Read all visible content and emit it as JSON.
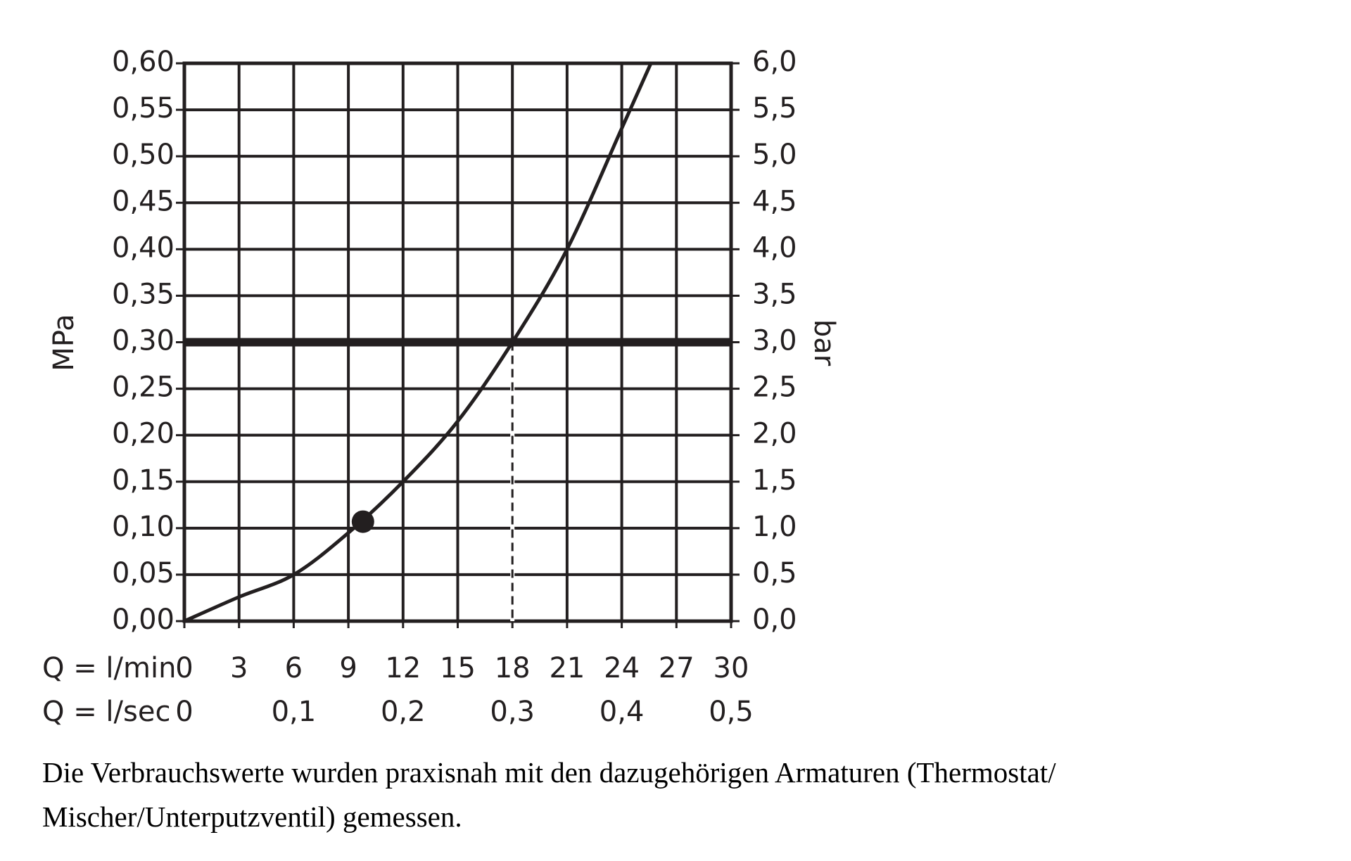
{
  "chart_data": {
    "type": "line",
    "y_label": "MPa",
    "y2_label": "bar",
    "x_label": "Q = l/min",
    "x2_label": "Q = l/sec",
    "x": [
      0,
      3,
      6,
      9,
      12,
      15,
      18,
      21,
      24,
      25.6
    ],
    "series": [
      {
        "color": "#231f20",
        "values": [
          0,
          0.026,
          0.05,
          0.095,
          0.15,
          0.215,
          0.3,
          0.4,
          0.53,
          0.6
        ]
      }
    ],
    "points": [
      {
        "x": 9.8,
        "y": 0.107,
        "color": "#231f20"
      }
    ],
    "hline": 0.3,
    "vline": 18,
    "xlim": [
      0,
      30
    ],
    "xticks": [
      0,
      3,
      6,
      9,
      12,
      15,
      18,
      21,
      24,
      27,
      30
    ],
    "x2lim": [
      0,
      0.5
    ],
    "x2ticks": [
      0,
      {
        "value": 0.1,
        "label": "0,1"
      },
      {
        "value": 0.2,
        "label": "0,2"
      },
      {
        "value": 0.3,
        "label": "0,3"
      },
      {
        "value": 0.4,
        "label": "0,4"
      },
      {
        "value": 0.5,
        "label": "0,5"
      }
    ],
    "ylim": [
      0,
      0.6
    ],
    "yticks": [
      {
        "value": 0,
        "label": "0,00"
      },
      {
        "value": 0.05,
        "label": "0,05"
      },
      {
        "value": 0.1,
        "label": "0,10"
      },
      {
        "value": 0.15,
        "label": "0,15"
      },
      {
        "value": 0.2,
        "label": "0,20"
      },
      {
        "value": 0.25,
        "label": "0,25"
      },
      {
        "value": 0.3,
        "label": "0,30"
      },
      {
        "value": 0.35,
        "label": "0,35"
      },
      {
        "value": 0.4,
        "label": "0,40"
      },
      {
        "value": 0.45,
        "label": "0,45"
      },
      {
        "value": 0.5,
        "label": "0,50"
      },
      {
        "value": 0.55,
        "label": "0,55"
      },
      {
        "value": 0.6,
        "label": "0,60"
      }
    ],
    "y2lim": [
      0,
      6
    ],
    "y2ticks": [
      {
        "value": 0,
        "label": "0,0"
      },
      {
        "value": 0.5,
        "label": "0,5"
      },
      {
        "value": 1,
        "label": "1,0"
      },
      {
        "value": 1.5,
        "label": "1,5"
      },
      {
        "value": 2,
        "label": "2,0"
      },
      {
        "value": 2.5,
        "label": "2,5"
      },
      {
        "value": 3,
        "label": "3,0"
      },
      {
        "value": 3.5,
        "label": "3,5"
      },
      {
        "value": 4,
        "label": "4,0"
      },
      {
        "value": 4.5,
        "label": "4,5"
      },
      {
        "value": 5,
        "label": "5,0"
      },
      {
        "value": 5.5,
        "label": "5,5"
      },
      {
        "value": 6,
        "label": "6,0"
      }
    ],
    "grid": true,
    "caption": [
      "Die Verbrauchswerte wurden praxisnah mit den dazugehörigen Armaturen (Thermostat/",
      "Mischer/Unterputzventil) gemessen."
    ]
  }
}
